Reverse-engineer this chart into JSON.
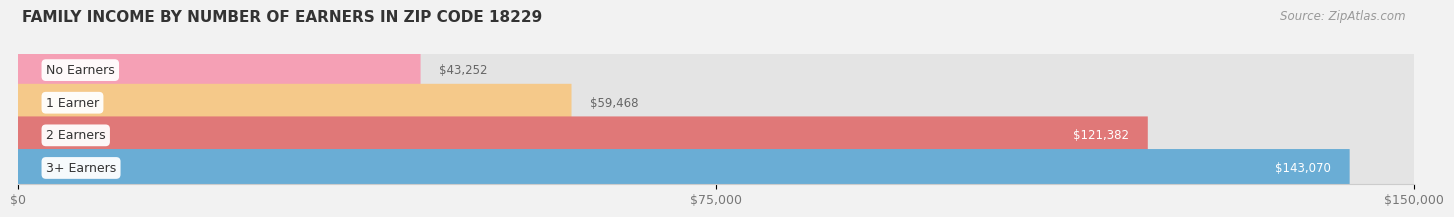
{
  "title": "FAMILY INCOME BY NUMBER OF EARNERS IN ZIP CODE 18229",
  "source": "Source: ZipAtlas.com",
  "categories": [
    "No Earners",
    "1 Earner",
    "2 Earners",
    "3+ Earners"
  ],
  "values": [
    43252,
    59468,
    121382,
    143070
  ],
  "bar_colors": [
    "#f5a0b5",
    "#f5c98a",
    "#e07878",
    "#6aadd5"
  ],
  "label_colors": [
    "#555555",
    "#555555",
    "#ffffff",
    "#ffffff"
  ],
  "value_labels": [
    "$43,252",
    "$59,468",
    "$121,382",
    "$143,070"
  ],
  "value_bg_colors": [
    "none",
    "none",
    "#e07878",
    "#6aadd5"
  ],
  "xlim": [
    0,
    150000
  ],
  "xtick_labels": [
    "$0",
    "$75,000",
    "$150,000"
  ],
  "bg_color": "#f2f2f2",
  "bar_bg_color": "#e4e4e4",
  "title_fontsize": 11,
  "source_fontsize": 8.5,
  "label_fontsize": 9,
  "value_fontsize": 8.5,
  "tick_fontsize": 9
}
